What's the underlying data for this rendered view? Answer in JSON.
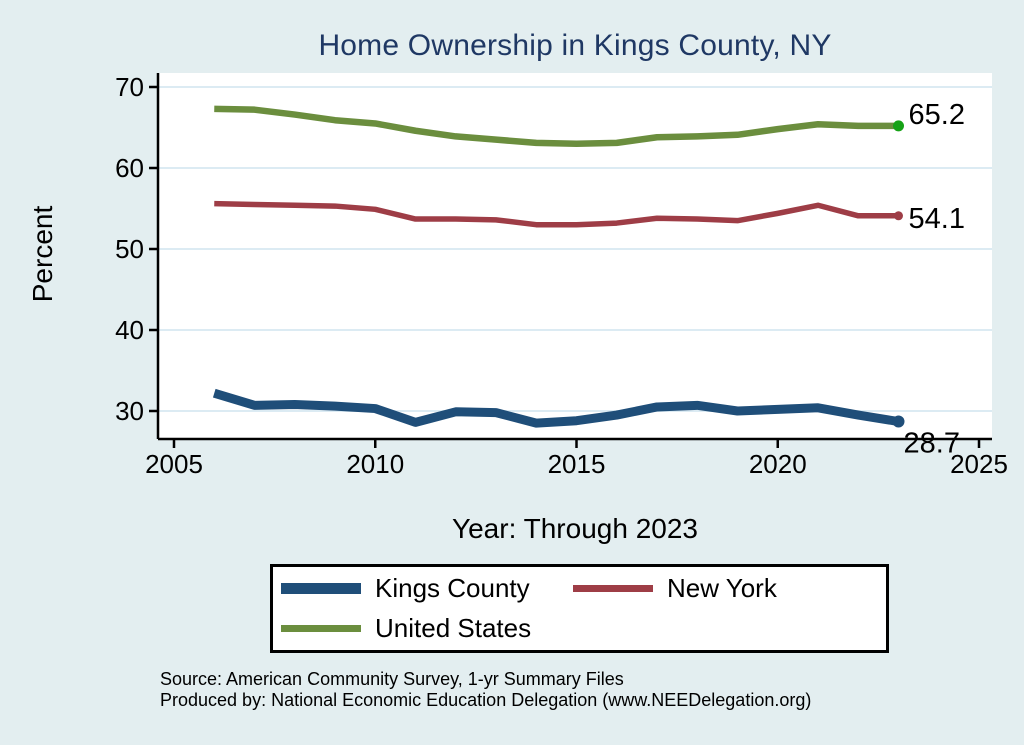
{
  "page": {
    "background_color": "#e3eef0",
    "title_color": "#1f3864"
  },
  "chart_data": {
    "type": "line",
    "title": "Home Ownership in Kings County, NY",
    "xlabel": "Year: Through 2023",
    "ylabel": "Percent",
    "x_ticks": [
      "2005",
      "2010",
      "2015",
      "2020",
      "2025"
    ],
    "y_ticks": [
      "30",
      "40",
      "50",
      "60",
      "70"
    ],
    "xlim": [
      2005,
      2025
    ],
    "ylim": [
      26.5,
      71.7
    ],
    "grid": "horizontal gridlines only, pale blue on white plot area",
    "legend_position": "below plot, boxed, 2 columns",
    "x": [
      2006,
      2007,
      2008,
      2009,
      2010,
      2011,
      2012,
      2013,
      2014,
      2015,
      2016,
      2017,
      2018,
      2019,
      2020,
      2021,
      2022,
      2023
    ],
    "series": [
      {
        "name": "Kings County",
        "color": "#1f4e79",
        "line_width": 9,
        "end_label": "28.7",
        "values": [
          32.2,
          30.7,
          30.8,
          30.6,
          30.3,
          28.6,
          29.9,
          29.8,
          28.5,
          28.8,
          29.5,
          30.5,
          30.7,
          30.0,
          30.2,
          30.4,
          29.5,
          28.7
        ]
      },
      {
        "name": "New York",
        "color": "#9e3d46",
        "line_width": 5.5,
        "end_label": "54.1",
        "values": [
          55.6,
          55.5,
          55.4,
          55.3,
          54.9,
          53.7,
          53.7,
          53.6,
          53.0,
          53.0,
          53.2,
          53.8,
          53.7,
          53.5,
          54.4,
          55.4,
          54.1,
          54.1
        ]
      },
      {
        "name": "United States",
        "color": "#6b8e3e",
        "line_width": 6.5,
        "end_label": "65.2",
        "marker_color": "#16a216",
        "values": [
          67.3,
          67.2,
          66.6,
          65.9,
          65.5,
          64.6,
          63.9,
          63.5,
          63.1,
          63.0,
          63.1,
          63.8,
          63.9,
          64.1,
          64.8,
          65.4,
          65.2,
          65.2
        ]
      }
    ]
  },
  "footer": {
    "source_line": "Source: American Community Survey, 1-yr Summary Files",
    "produced_by_line": "Produced by: National Economic Education Delegation (www.NEEDelegation.org)"
  }
}
